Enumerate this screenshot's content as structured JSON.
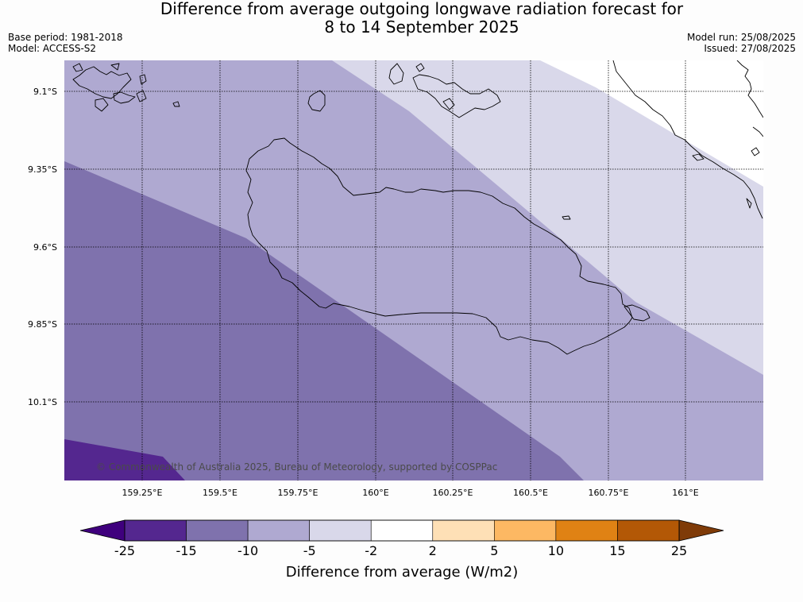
{
  "title": {
    "line1": "Difference from average outgoing longwave radiation forecast for",
    "line2": "8 to 14 September 2025"
  },
  "meta": {
    "base_period": "Base period: 1981-2018",
    "model": "Model: ACCESS-S2",
    "model_run": "Model run: 25/08/2025",
    "issued": "Issued: 27/08/2025"
  },
  "map": {
    "lat_labels": [
      "9.1°S",
      "9.35°S",
      "9.6°S",
      "9.85°S",
      "10.1°S"
    ],
    "lon_labels": [
      "159.25°E",
      "159.5°E",
      "159.75°E",
      "160°E",
      "160.25°E",
      "160.5°E",
      "160.75°E",
      "161°E"
    ],
    "copyright": "© Commonwealth of Australia 2025, Bureau of Meteorology, supported by COSPPac",
    "zone_colors": {
      "minus15_to_minus25": "#54278f",
      "minus10_to_minus15": "#7f72ad",
      "minus5_to_minus10": "#afa9d1",
      "minus2_to_minus5": "#d9d8ea"
    }
  },
  "colorbar": {
    "title": "Difference from average (W/m2)",
    "ticks": [
      "-25",
      "-15",
      "-10",
      "-5",
      "-2",
      "2",
      "5",
      "10",
      "15",
      "25"
    ],
    "under_color": "#3f007d",
    "over_color": "#7f3b08",
    "colors": [
      "#54278f",
      "#7f72ad",
      "#afa9d1",
      "#d9d8ea",
      "#ffffff",
      "#fee0b6",
      "#fdb863",
      "#e08214",
      "#b35806"
    ]
  }
}
